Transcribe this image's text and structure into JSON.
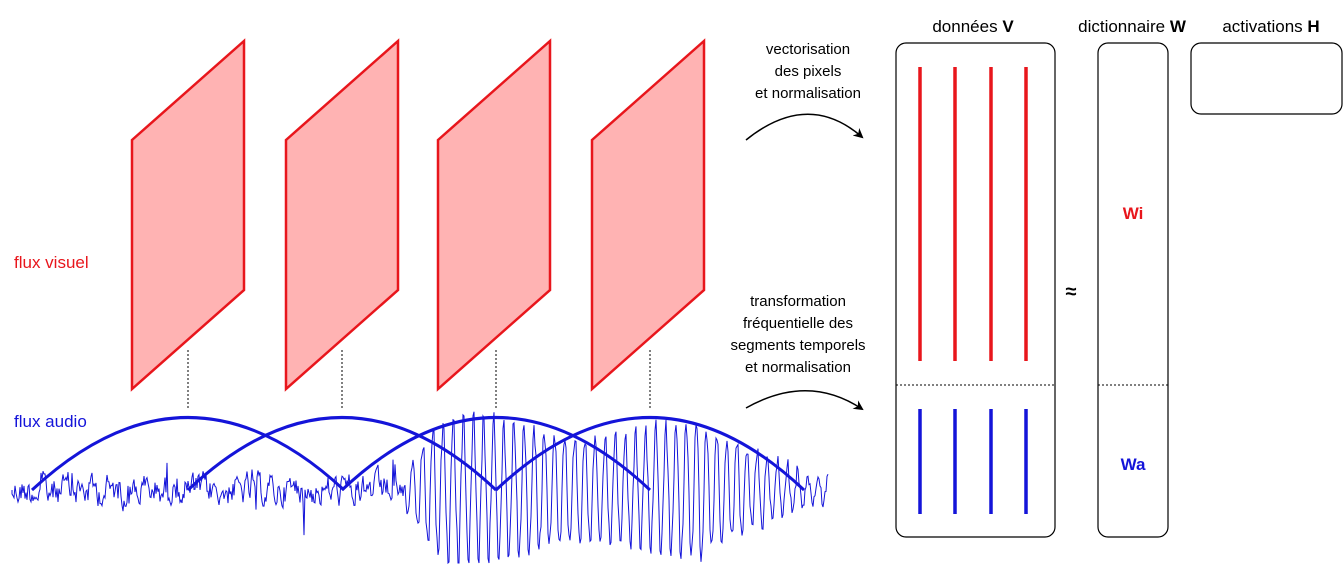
{
  "labels": {
    "visual_stream": "flux visuel",
    "audio_stream": "flux audio",
    "vectorization_line1": "vectorisation",
    "vectorization_line2": "des pixels",
    "vectorization_line3": "et normalisation",
    "transform_line1": "transformation",
    "transform_line2": "fréquentielle des",
    "transform_line3": "segments temporels",
    "transform_line4": "et normalisation",
    "data_prefix": "données",
    "data_symbol": "V",
    "dict_prefix": "dictionnaire",
    "dict_symbol": "W",
    "act_prefix": "activations",
    "act_symbol": "H",
    "approx": "≈",
    "wi": "Wi",
    "wa": "Wa"
  },
  "colors": {
    "visual": "#e8161c",
    "visual_fill": "#ffb3b3",
    "audio": "#1414d9",
    "stroke": "#000000"
  },
  "frames_count": 4,
  "image_vectors_count": 4,
  "audio_vectors_count": 4
}
